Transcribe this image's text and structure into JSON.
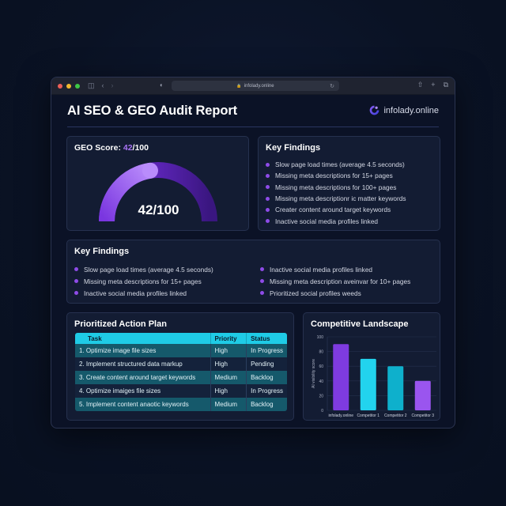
{
  "browser": {
    "url": "infolady.online",
    "traffic_lights": [
      "#ec5f57",
      "#f1b92f",
      "#3ec746"
    ],
    "icons": [
      "sidebar-icon",
      "back-icon",
      "forward-icon",
      "shield-icon",
      "lock-icon",
      "reload-icon",
      "share-icon",
      "new-tab-icon",
      "tabs-overview-icon"
    ]
  },
  "header": {
    "title": "AI SEO & GEO Audit Report",
    "brand": "infolady.online"
  },
  "score_card": {
    "label": "GEO Score: ",
    "score": "42",
    "max": "/100",
    "gauge_text": "42/100",
    "value": 42,
    "accent_color": "#a874f5"
  },
  "key_findings_top": {
    "title": "Key Findings",
    "items": [
      "Slow page load times (average 4.5 seconds)",
      "Missing meta descriptions for 15+ pages",
      "Missing meta descriptions for 100+ pages",
      "Missing meta descriptionr ic matter keywords",
      "Creater content around target keywords",
      "Inactive social media profiles linked"
    ]
  },
  "key_findings_bottom": {
    "title": "Key Findings",
    "left_items": [
      "Slow page load times (average 4.5 seconds)",
      "Missing meta descriptions for 15+ pages",
      "Inactive social media profiles linked"
    ],
    "right_items": [
      "Inactive social media profiles linked",
      "Missing meta description aveinvar for 10+ pages",
      "Prioritized social profiles weeds"
    ]
  },
  "action_plan": {
    "title": "Prioritized Action Plan",
    "columns": [
      "Task",
      "Priority",
      "Status"
    ],
    "rows": [
      {
        "task": "1.  Optimize image file sizes",
        "priority": "High",
        "status": "In Progress"
      },
      {
        "task": "2.  Implement structured data markup",
        "priority": "High",
        "status": "Pending"
      },
      {
        "task": "3.  Create content around target keywords",
        "priority": "Medium",
        "status": "Backlog"
      },
      {
        "task": "4.  Optimize imaiges file sizes",
        "priority": "High",
        "status": "In Progress"
      },
      {
        "task": "5.  Implement content anaotic keywords",
        "priority": "Medium",
        "status": "Backlog"
      }
    ]
  },
  "competitive": {
    "title": "Competitive Landscape"
  },
  "chart_data": {
    "type": "bar",
    "title": "Competitive Landscape",
    "xlabel": "",
    "ylabel": "AI visibility score",
    "categories": [
      "infolady.online",
      "Competitor 1",
      "Competitor 2",
      "Competitor 3"
    ],
    "values": [
      90,
      70,
      60,
      40
    ],
    "colors": [
      "#7e3be0",
      "#22d3ee",
      "#0eb0cc",
      "#9a55ef"
    ],
    "ylim": [
      0,
      100
    ],
    "yticks": [
      0,
      20,
      40,
      60,
      80,
      100
    ],
    "grid": true,
    "legend": "none"
  }
}
